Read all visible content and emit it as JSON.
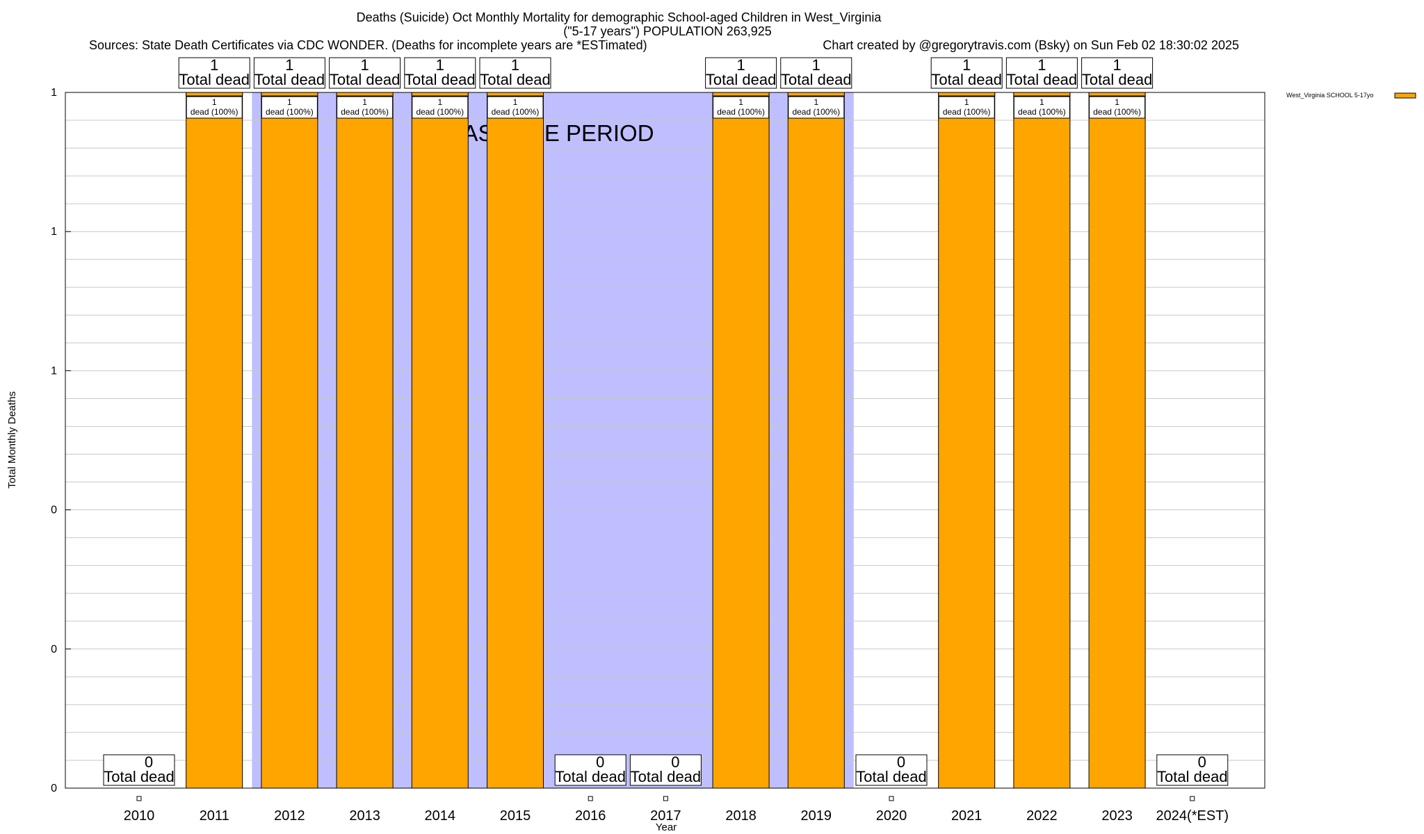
{
  "chart_data": {
    "type": "bar",
    "title_lines": [
      "Deaths (Suicide) Oct Monthly Mortality for demographic School-aged Children in West_Virginia",
      "(\"5-17 years\") POPULATION 263,925"
    ],
    "sources": "Sources: State Death Certificates via CDC WONDER. (Deaths for incomplete years are *ESTimated)",
    "credit": "Chart created by @gregorytravis.com (Bsky) on Sun Feb 02 18:30:02 2025",
    "xlabel": "Year",
    "ylabel": "Total Monthly Deaths",
    "ylim": [
      0,
      1
    ],
    "y_tick_labels": [
      "0",
      "0",
      "0",
      "1",
      "1",
      "1"
    ],
    "categories": [
      "2010",
      "2011",
      "2012",
      "2013",
      "2014",
      "2015",
      "2016",
      "2017",
      "2018",
      "2019",
      "2020",
      "2021",
      "2022",
      "2023",
      "2024(*EST)"
    ],
    "series": [
      {
        "name": "West_Virginia SCHOOL 5-17yo",
        "color": "#ffa500",
        "values": [
          0,
          1,
          1,
          1,
          1,
          1,
          0,
          0,
          1,
          1,
          0,
          1,
          1,
          1,
          0
        ]
      }
    ],
    "total_labels": [
      "0",
      "1",
      "1",
      "1",
      "1",
      "1",
      "0",
      "0",
      "1",
      "1",
      "0",
      "1",
      "1",
      "1",
      "0"
    ],
    "total_suffix": "Total dead",
    "segment_labels": [
      "",
      "1",
      "1",
      "1",
      "1",
      "1",
      "",
      "",
      "1",
      "1",
      "",
      "1",
      "1",
      "1",
      ""
    ],
    "segment_suffix": "dead (100%)",
    "baseline_label": "BASELINE PERIOD",
    "baseline_color": "#bfbfff",
    "baseline_start": "2012",
    "baseline_end": "2019",
    "grid": true,
    "legend_placement": "top-right"
  }
}
